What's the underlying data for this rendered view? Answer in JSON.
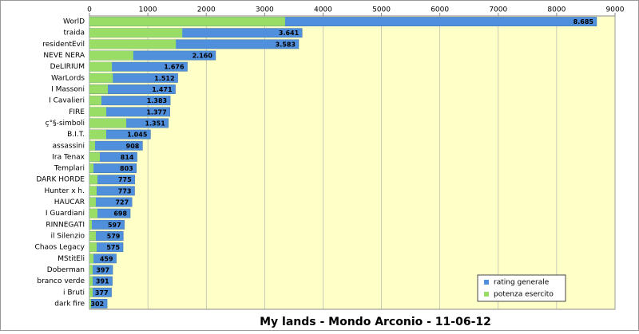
{
  "chart_data": {
    "type": "bar",
    "orientation": "horizontal",
    "title": "My lands - Mondo Arconio  - 11-06-12",
    "categories": [
      "WorlD",
      "traida",
      "residentEvil",
      "NEVE NERA",
      "DeLIRIUM",
      "WarLords",
      "I Massoni",
      "I Cavalieri",
      "FIRE",
      "ç°§-simboli",
      "B.I.T.",
      "assassini",
      "Ira Tenax",
      "Templari",
      "DARK HORDE",
      "Hunter x h.",
      "HAUCAR",
      "I Guardiani",
      "RINNEGATI",
      "il Silenzio",
      "Chaos Legacy",
      "MStitEli",
      "Doberman",
      "branco verde",
      "i Bruti",
      "dark fire"
    ],
    "series": [
      {
        "name": "rating generale",
        "color": "#4f8fdc",
        "values": [
          8685,
          3641,
          3583,
          2160,
          1676,
          1512,
          1471,
          1383,
          1377,
          1351,
          1045,
          908,
          814,
          803,
          775,
          773,
          727,
          698,
          597,
          579,
          575,
          459,
          397,
          391,
          377,
          302
        ],
        "value_labels": [
          "8.685",
          "3.641",
          "3.583",
          "2.160",
          "1.676",
          "1.512",
          "1.471",
          "1.383",
          "1.377",
          "1.351",
          "1.045",
          "908",
          "814",
          "803",
          "775",
          "773",
          "727",
          "698",
          "597",
          "579",
          "575",
          "459",
          "397",
          "391",
          "377",
          "302"
        ]
      },
      {
        "name": "potenza esercito",
        "color": "#99dd66",
        "values": [
          3350,
          1590,
          1480,
          750,
          385,
          400,
          315,
          205,
          287,
          630,
          287,
          96,
          178,
          68,
          137,
          123,
          109,
          137,
          41,
          109,
          123,
          68,
          55,
          55,
          55,
          27
        ]
      }
    ],
    "xlim": [
      0,
      9000
    ],
    "xticks": [
      0,
      1000,
      2000,
      3000,
      4000,
      5000,
      6000,
      7000,
      8000,
      9000
    ],
    "grid": true,
    "legend": "bottom-right"
  }
}
